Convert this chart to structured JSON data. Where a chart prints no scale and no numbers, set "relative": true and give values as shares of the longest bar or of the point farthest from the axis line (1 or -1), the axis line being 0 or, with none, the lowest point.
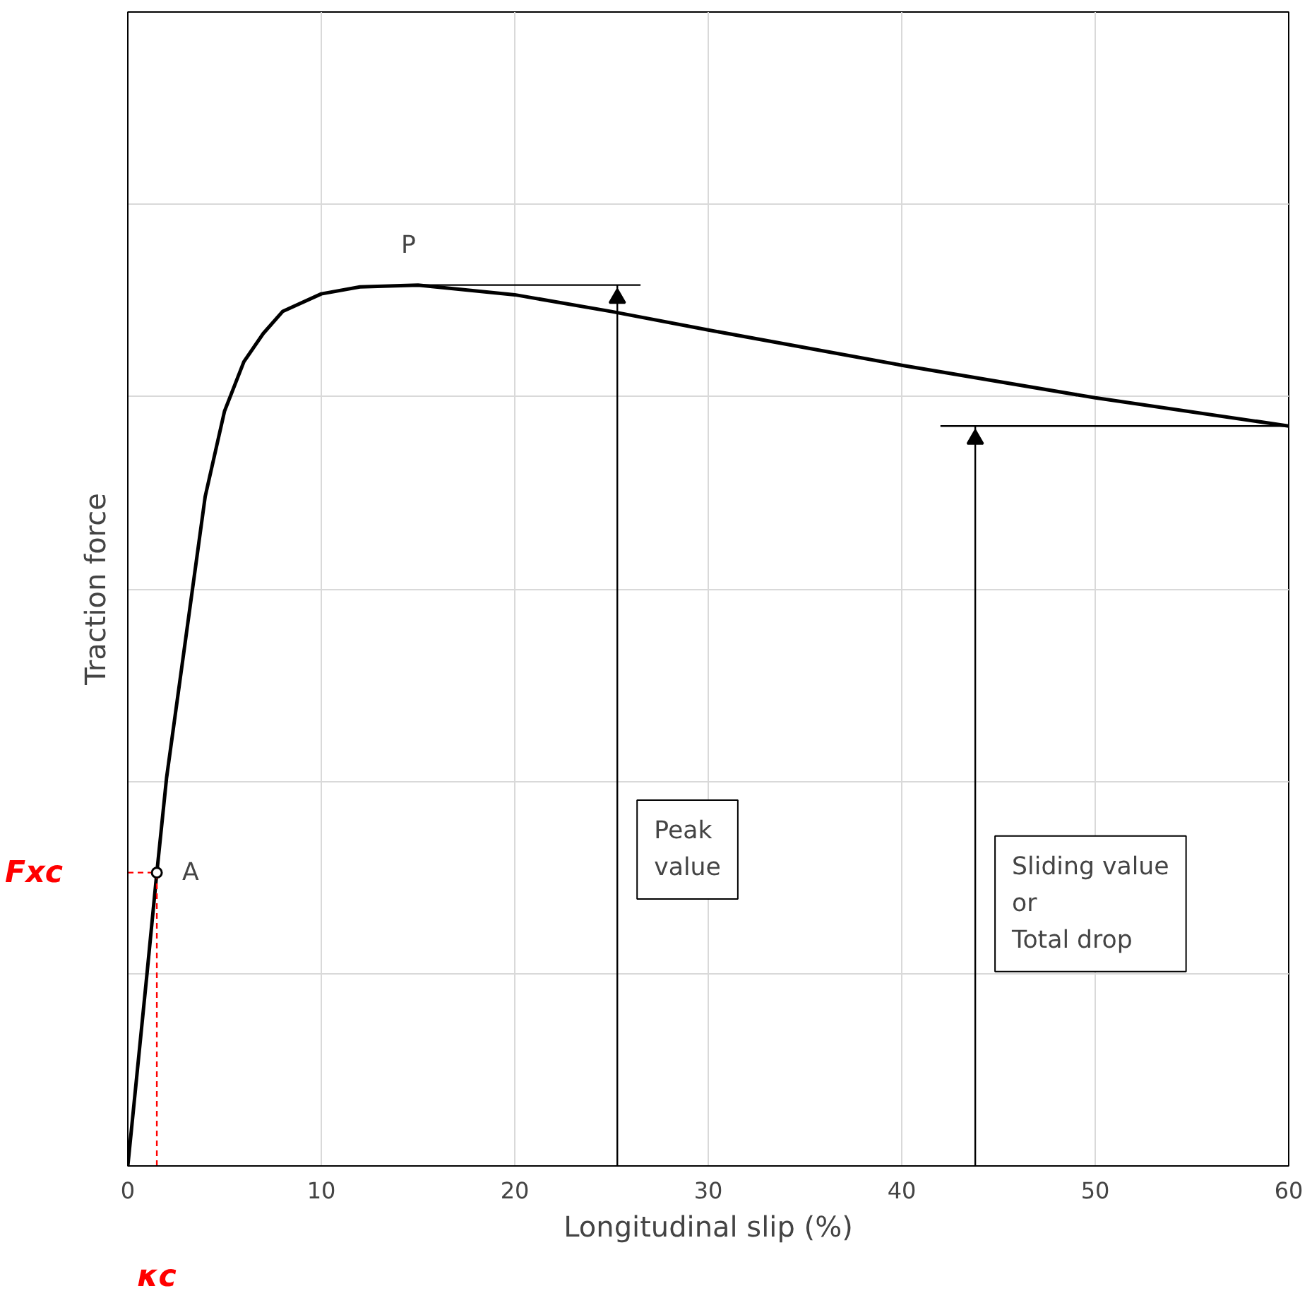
{
  "chart_data": {
    "type": "line",
    "relative": true,
    "xlabel": "Longitudinal slip (%)",
    "ylabel": "Traction force",
    "xlim": [
      0,
      60
    ],
    "xticks": [
      0,
      10,
      20,
      30,
      40,
      50,
      60
    ],
    "grid": true,
    "series": [
      {
        "color": "#000000",
        "x": [
          0,
          1,
          1.5,
          2,
          3,
          4,
          5,
          6,
          7,
          8,
          10,
          12,
          15,
          20,
          25,
          30,
          40,
          50,
          60
        ],
        "values": [
          0,
          0.22,
          0.333,
          0.44,
          0.6,
          0.76,
          0.857,
          0.913,
          0.945,
          0.97,
          0.99,
          0.998,
          1.0,
          0.989,
          0.97,
          0.949,
          0.909,
          0.872,
          0.84
        ]
      },
      {
        "type": "scatter",
        "color": "#000000",
        "marker": "circle",
        "x": [
          1.5
        ],
        "values": [
          0.333
        ]
      },
      {
        "color": "#000000",
        "x": [
          15,
          26.5
        ],
        "values": [
          1.0,
          1.0
        ]
      },
      {
        "color": "#000000",
        "x": [
          42,
          60
        ],
        "values": [
          0.84,
          0.84
        ]
      },
      {
        "color": "#000000",
        "x": [
          25.3,
          25.3
        ],
        "values": [
          0,
          1.0
        ]
      },
      {
        "color": "#000000",
        "x": [
          43.8,
          43.8
        ],
        "values": [
          0,
          0.84
        ]
      },
      {
        "type": "scatter",
        "color": "#000000",
        "marker": "triangle",
        "x": [
          25.3,
          43.8
        ],
        "values": [
          0.985,
          0.825
        ]
      }
    ],
    "annotations": [
      {
        "text": "P",
        "x": 15,
        "y": 1.0
      },
      {
        "text": "A",
        "x": 1.5,
        "y": 0.333
      },
      "Fxc",
      "κc",
      "Peak\nvalue",
      "Sliding value\nor\nTotal drop"
    ]
  }
}
